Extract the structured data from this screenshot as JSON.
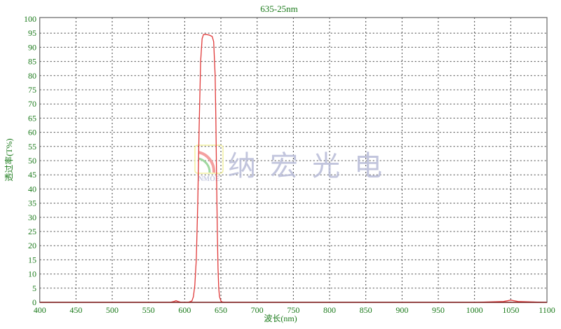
{
  "chart_data": {
    "type": "line",
    "title": "635-25nm",
    "xlabel": "波长(nm)",
    "ylabel": "透过率(T%)",
    "xlim": [
      400,
      1100
    ],
    "ylim": [
      0,
      100
    ],
    "xticks": [
      400,
      450,
      500,
      550,
      600,
      650,
      700,
      750,
      800,
      850,
      900,
      950,
      1000,
      1050,
      1100
    ],
    "yticks": [
      0,
      5,
      10,
      15,
      20,
      25,
      30,
      35,
      40,
      45,
      50,
      55,
      60,
      65,
      70,
      75,
      80,
      85,
      90,
      95,
      100
    ],
    "ytick_labels_shown": [
      "0",
      "5",
      "10",
      "15",
      "20",
      "25",
      "30",
      "35",
      "40",
      "45",
      "50",
      "55",
      "60",
      "65",
      "70",
      "75",
      "80",
      "85",
      "90",
      "95",
      "100"
    ],
    "grid": true,
    "legend": "none",
    "series": [
      {
        "color": "#e03a3a",
        "x": [
          400,
          580,
          585,
          588,
          591,
          595,
          600,
          605,
          610,
          612,
          614,
          616,
          618,
          620,
          622,
          624,
          626,
          630,
          634,
          638,
          640,
          642,
          643,
          644,
          645,
          646,
          647,
          648,
          650,
          652,
          655,
          660,
          700,
          800,
          900,
          1000,
          1040,
          1050,
          1060,
          1100
        ],
        "y": [
          0,
          0,
          0.3,
          0.6,
          0.3,
          0,
          0,
          0,
          0.5,
          2,
          6,
          15,
          35,
          62,
          85,
          93,
          94.5,
          94.5,
          94.3,
          93.8,
          92,
          80,
          65,
          45,
          25,
          12,
          5,
          2,
          0.5,
          0.1,
          0,
          0,
          0,
          0,
          0,
          0,
          0.3,
          0.8,
          0.3,
          0
        ]
      }
    ]
  },
  "watermark": {
    "text": "纳宏光电",
    "logo_text": "NMOE"
  },
  "colors": {
    "axis_text": "#1a7a1a",
    "curve": "#e03a3a",
    "grid": "#444444",
    "watermark": "#b8bcd8"
  }
}
